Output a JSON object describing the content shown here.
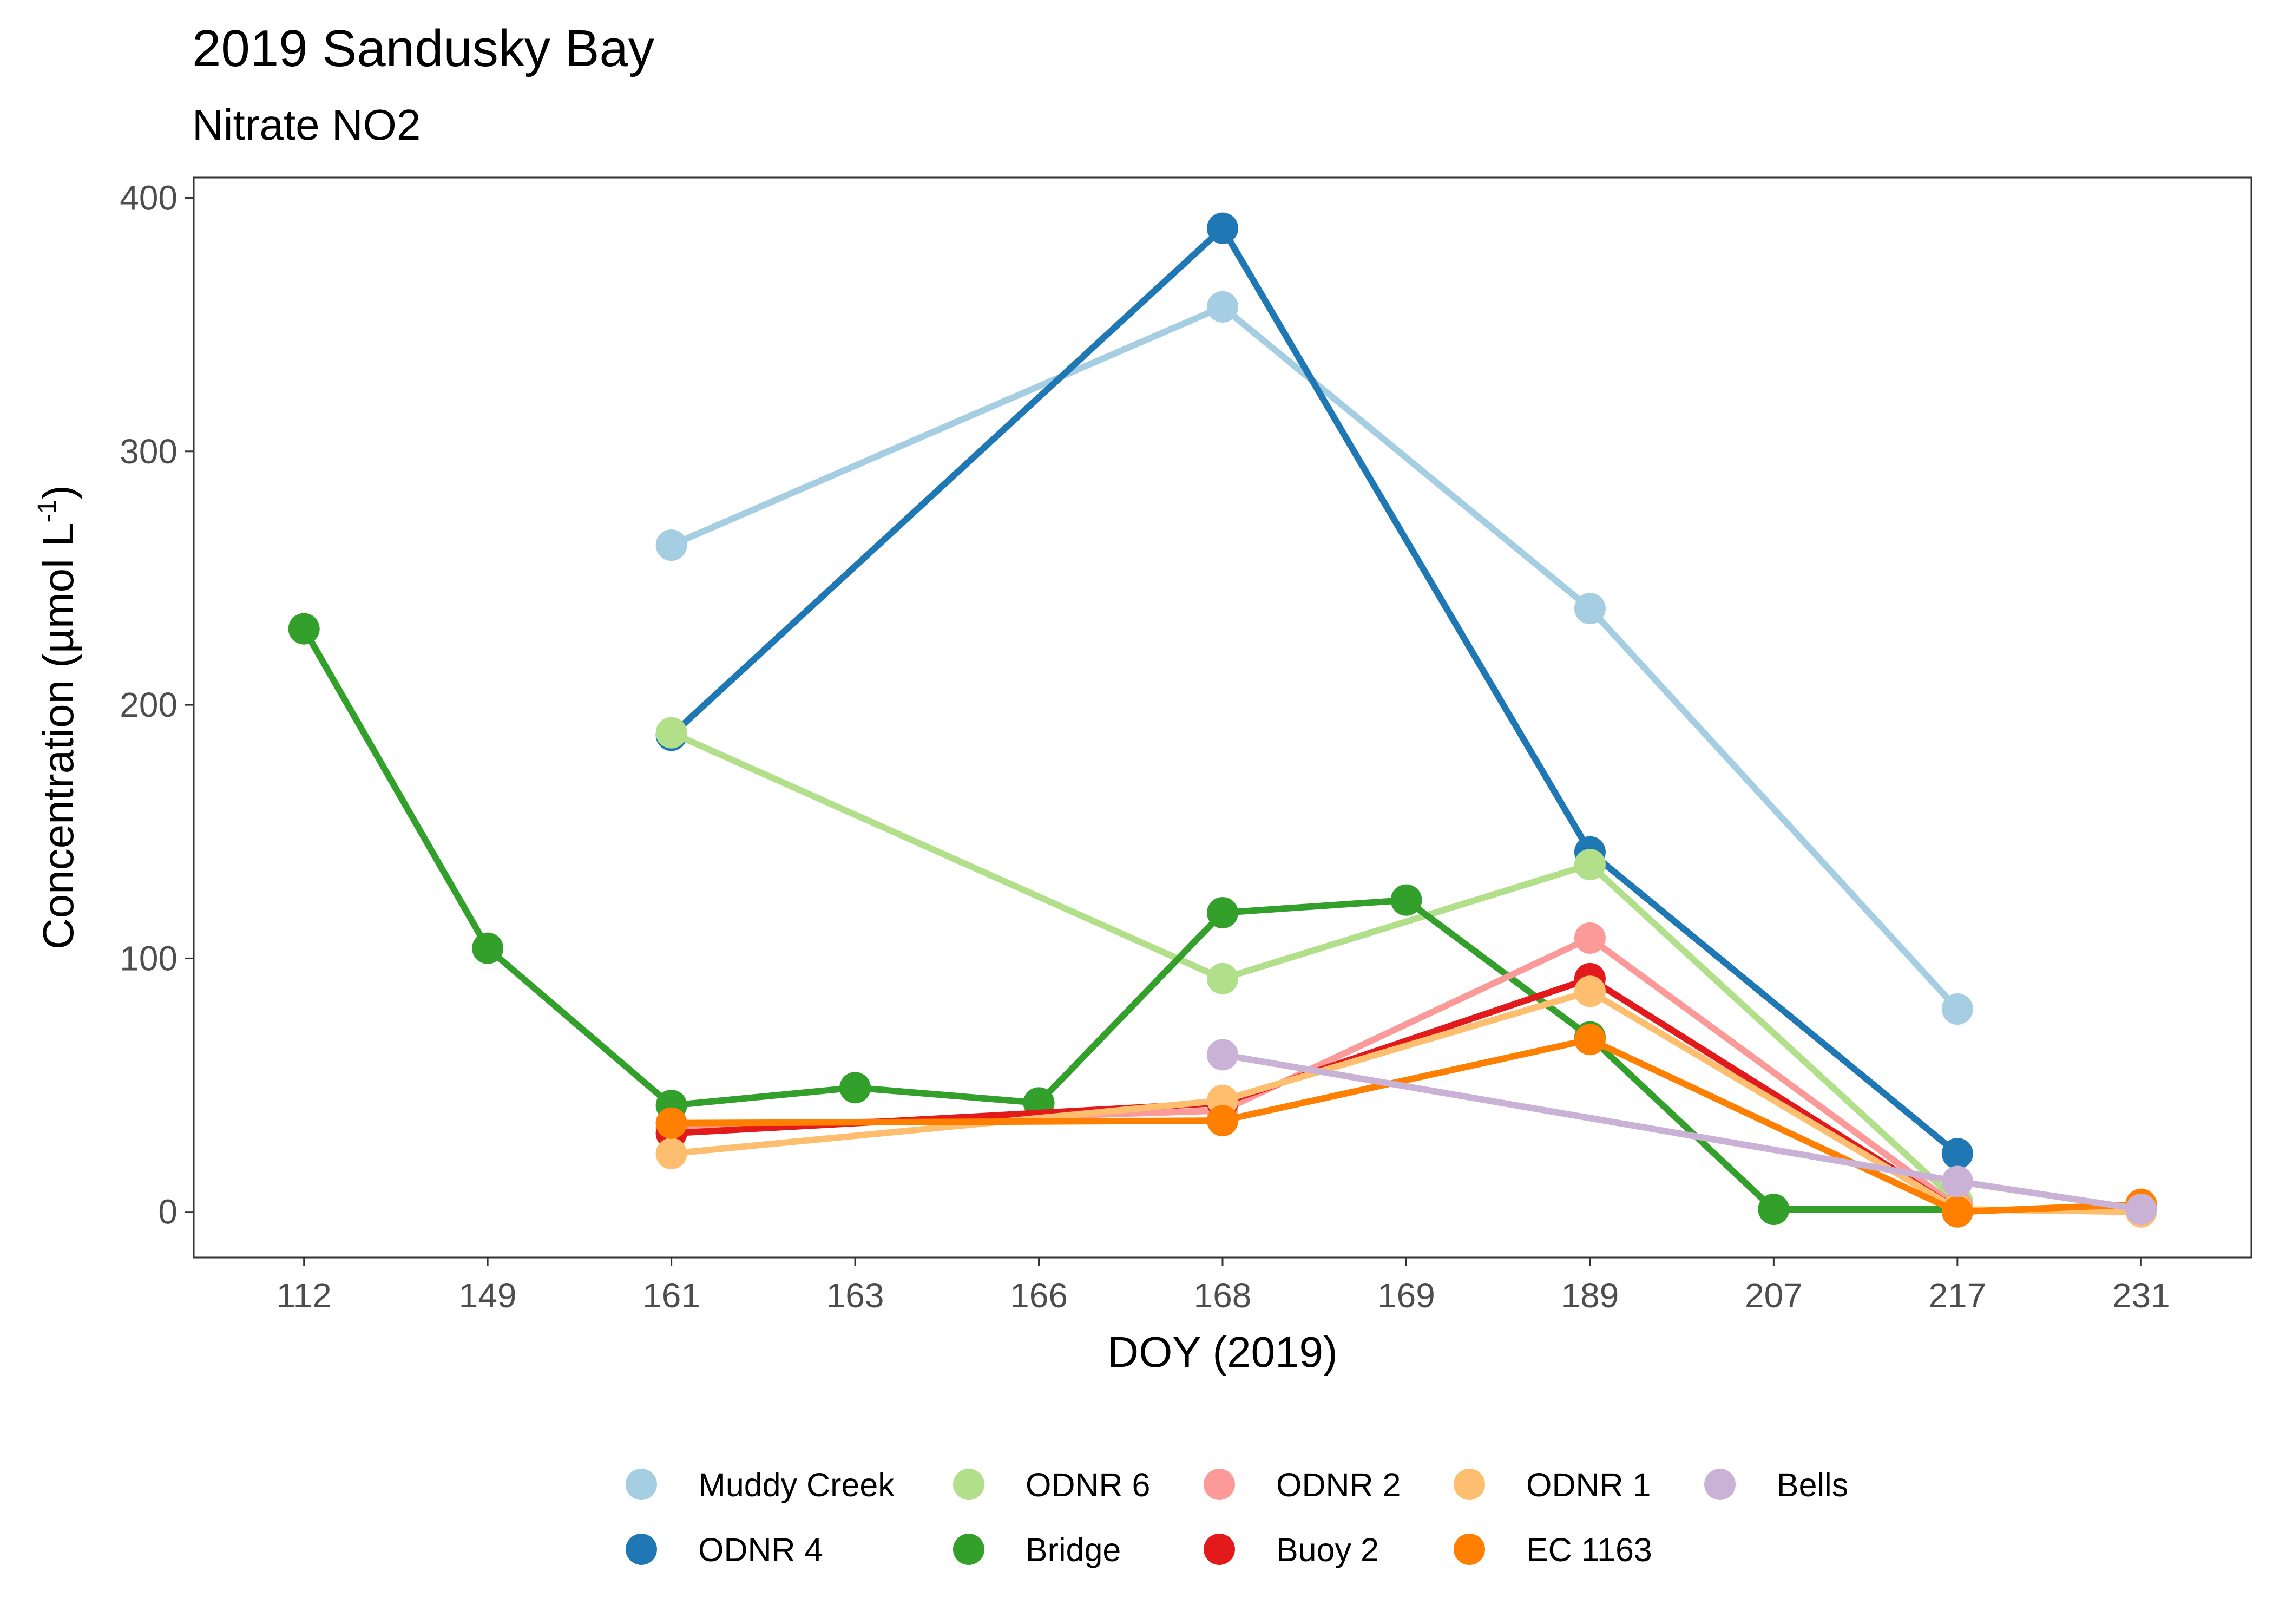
{
  "chart_data": {
    "type": "line",
    "title": "2019 Sandusky Bay",
    "subtitle": "Nitrate NO2",
    "xlabel": "DOY (2019)",
    "ylabel_main": "Concentration (µmol L",
    "ylabel_sup": "-1",
    "ylabel_close": ")",
    "categories": [
      "112",
      "149",
      "161",
      "163",
      "166",
      "168",
      "169",
      "189",
      "207",
      "217",
      "231"
    ],
    "ylim": [
      -18,
      408
    ],
    "yticks": [
      0,
      100,
      200,
      300,
      400
    ],
    "grid": false,
    "legend_position": "bottom",
    "series": [
      {
        "name": "Muddy Creek",
        "color": "#a6cee3",
        "values": [
          null,
          null,
          263,
          null,
          null,
          357,
          null,
          238,
          null,
          80,
          null
        ]
      },
      {
        "name": "ODNR 4",
        "color": "#1f78b4",
        "values": [
          null,
          null,
          188,
          null,
          null,
          388,
          null,
          142,
          null,
          23,
          null
        ]
      },
      {
        "name": "ODNR 6",
        "color": "#b2df8a",
        "values": [
          null,
          null,
          189,
          null,
          null,
          92,
          null,
          137,
          null,
          4,
          null
        ]
      },
      {
        "name": "Bridge",
        "color": "#33a02c",
        "values": [
          230,
          104,
          42,
          49,
          43,
          118,
          123,
          69,
          1,
          1,
          null
        ]
      },
      {
        "name": "ODNR 2",
        "color": "#fb9a99",
        "values": [
          null,
          null,
          33,
          null,
          null,
          40,
          null,
          108,
          null,
          2,
          null
        ]
      },
      {
        "name": "Buoy 2",
        "color": "#e31a1c",
        "values": [
          null,
          null,
          31,
          null,
          null,
          43,
          null,
          92,
          null,
          1,
          null
        ]
      },
      {
        "name": "ODNR 1",
        "color": "#fdbf6f",
        "values": [
          null,
          null,
          23,
          null,
          null,
          44,
          null,
          87,
          null,
          1,
          0
        ]
      },
      {
        "name": "EC 1163",
        "color": "#ff7f00",
        "values": [
          null,
          null,
          35,
          null,
          null,
          36,
          null,
          68,
          null,
          0,
          3
        ]
      },
      {
        "name": "Bells",
        "color": "#cab2d6",
        "values": [
          null,
          null,
          null,
          null,
          null,
          62,
          null,
          null,
          null,
          12,
          1
        ]
      }
    ]
  }
}
